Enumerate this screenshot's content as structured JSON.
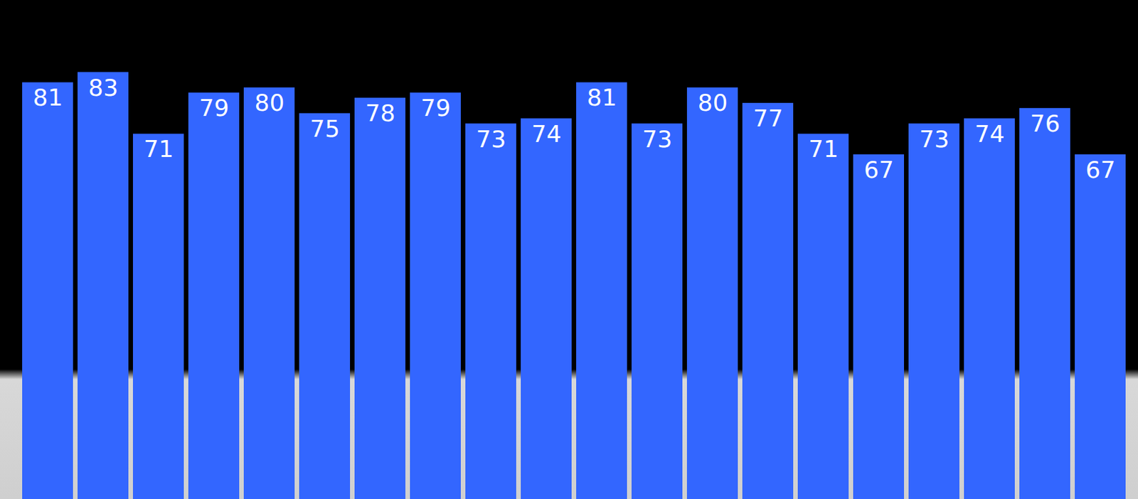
{
  "chart_data": {
    "type": "bar",
    "categories": [
      null,
      null,
      null,
      null,
      null,
      null,
      null,
      null,
      null,
      null,
      null,
      null,
      null,
      null,
      null,
      null,
      null,
      null,
      null,
      null
    ],
    "values": [
      81,
      83,
      71,
      79,
      80,
      75,
      78,
      79,
      73,
      74,
      81,
      73,
      80,
      77,
      71,
      67,
      73,
      74,
      76,
      67
    ],
    "color": "#3366ff",
    "ylim": [
      0,
      97
    ],
    "data_labels": true,
    "tick_labels": false,
    "grid": false
  }
}
